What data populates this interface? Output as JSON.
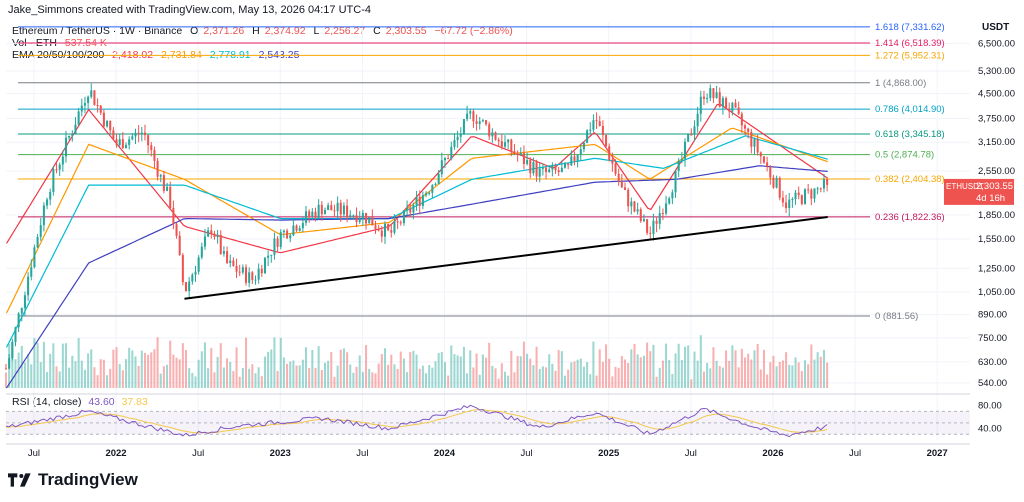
{
  "attribution": "Jake_Simmons created with TradingView.com, May 13, 2026 04:17 UTC-4",
  "legend": {
    "symbol": "Ethereum / TetherUS · 1W · Binance",
    "o_label": "O",
    "o_value": "2,371.26",
    "h_label": "H",
    "h_value": "2,374.92",
    "l_label": "L",
    "l_value": "2,256.27",
    "c_label": "C",
    "c_value": "2,303.55",
    "change": "−67.72 (−2.86%)",
    "vol_label": "Vol · ETH",
    "vol_value": "537.54 K",
    "ema_label": "EMA 20/50/100/200",
    "ema_values": [
      "2,418.02",
      "2,731.84",
      "2,778.91",
      "2,543.25"
    ]
  },
  "rsi_legend": {
    "label": "RSI (14, close)",
    "value": "43.60",
    "ma_value": "37.83"
  },
  "axis_title": "USDT",
  "price_badge": {
    "symbol": "ETHUSDT",
    "price": "2,303.55",
    "countdown": "4d 16h"
  },
  "brand": "TradingView",
  "colors": {
    "up": "#26a69a",
    "down": "#ef5350",
    "ema20": "#f23645",
    "ema50": "#ff9800",
    "ema100": "#00bcd4",
    "ema200": "#3f3fc0",
    "rsi": "#7e57c2",
    "rsi_ma": "#f5c84c",
    "trendline": "#000000"
  },
  "chart_data": {
    "type": "candlestick",
    "y_scale": "log",
    "ylim": [
      520,
      7600
    ],
    "x_ticks": [
      "Jul",
      "2022",
      "Jul",
      "2023",
      "Jul",
      "2024",
      "Jul",
      "2025",
      "Jul",
      "2026",
      "Jul",
      "2027"
    ],
    "y_ticks": [
      "6,500.00",
      "5,300.00",
      "4,500.00",
      "3,750.00",
      "3,150.00",
      "2,550.00",
      "1,850.00",
      "1,550.00",
      "1,250.00",
      "1,050.00",
      "890.00",
      "750.00",
      "630.00",
      "540.00"
    ],
    "fib_levels": [
      {
        "label": "1.618 (7,331.62)",
        "value": 7331.62,
        "color": "#2962ff"
      },
      {
        "label": "1.414 (6,518.39)",
        "value": 6518.39,
        "color": "#e91e63"
      },
      {
        "label": "1.272 (5,952.31)",
        "value": 5952.31,
        "color": "#f7a600"
      },
      {
        "label": "1 (4,868.00)",
        "value": 4868.0,
        "color": "#787b86"
      },
      {
        "label": "0.786 (4,014.90)",
        "value": 4014.9,
        "color": "#00a0c8"
      },
      {
        "label": "0.618 (3,345.18)",
        "value": 3345.18,
        "color": "#089981"
      },
      {
        "label": "0.5 (2,874.78)",
        "value": 2874.78,
        "color": "#4caf50"
      },
      {
        "label": "0.382 (2,404.38)",
        "value": 2404.38,
        "color": "#f7a600"
      },
      {
        "label": "0.236 (1,822.36)",
        "value": 1822.36,
        "color": "#c2185b"
      },
      {
        "label": "0 (881.56)",
        "value": 881.56,
        "color": "#787b86"
      }
    ],
    "trendline": {
      "from": {
        "date": "2022-06",
        "price": 1000
      },
      "to": {
        "date": "2026-05",
        "price": 1820
      }
    },
    "close_path": [
      [
        "2021-05",
        600
      ],
      [
        "2021-08",
        2200
      ],
      [
        "2021-11",
        4700
      ],
      [
        "2022-01",
        3100
      ],
      [
        "2022-03",
        3400
      ],
      [
        "2022-05",
        2000
      ],
      [
        "2022-06",
        1050
      ],
      [
        "2022-08",
        1700
      ],
      [
        "2022-09",
        1300
      ],
      [
        "2022-11",
        1150
      ],
      [
        "2023-01",
        1600
      ],
      [
        "2023-04",
        1950
      ],
      [
        "2023-07",
        1850
      ],
      [
        "2023-09",
        1600
      ],
      [
        "2023-12",
        2300
      ],
      [
        "2024-03",
        3900
      ],
      [
        "2024-05",
        3200
      ],
      [
        "2024-08",
        2500
      ],
      [
        "2024-10",
        2550
      ],
      [
        "2024-12",
        3800
      ],
      [
        "2025-02",
        2200
      ],
      [
        "2025-04",
        1600
      ],
      [
        "2025-06",
        2500
      ],
      [
        "2025-08",
        4600
      ],
      [
        "2025-10",
        4000
      ],
      [
        "2025-12",
        2900
      ],
      [
        "2026-02",
        2000
      ],
      [
        "2026-05",
        2303.55
      ]
    ],
    "rsi_ticks": [
      "80.00",
      "40.00"
    ],
    "rsi_path": [
      [
        "2021-05",
        42
      ],
      [
        "2021-11",
        70
      ],
      [
        "2022-06",
        28
      ],
      [
        "2022-10",
        45
      ],
      [
        "2023-04",
        58
      ],
      [
        "2023-09",
        40
      ],
      [
        "2024-03",
        80
      ],
      [
        "2024-08",
        42
      ],
      [
        "2024-12",
        68
      ],
      [
        "2025-04",
        30
      ],
      [
        "2025-08",
        74
      ],
      [
        "2025-12",
        40
      ],
      [
        "2026-02",
        28
      ],
      [
        "2026-05",
        43.6
      ]
    ],
    "ema_paths": {
      "ema20": [
        [
          "2021-05",
          1500
        ],
        [
          "2021-11",
          4000
        ],
        [
          "2022-06",
          1700
        ],
        [
          "2023-01",
          1400
        ],
        [
          "2023-09",
          1700
        ],
        [
          "2024-03",
          3300
        ],
        [
          "2024-09",
          2600
        ],
        [
          "2024-12",
          3400
        ],
        [
          "2025-04",
          1900
        ],
        [
          "2025-09",
          4200
        ],
        [
          "2026-05",
          2420
        ]
      ],
      "ema50": [
        [
          "2021-05",
          900
        ],
        [
          "2021-11",
          3100
        ],
        [
          "2022-06",
          2400
        ],
        [
          "2023-01",
          1600
        ],
        [
          "2023-09",
          1750
        ],
        [
          "2024-03",
          2800
        ],
        [
          "2024-12",
          3100
        ],
        [
          "2025-04",
          2400
        ],
        [
          "2025-10",
          3500
        ],
        [
          "2026-05",
          2730
        ]
      ],
      "ema100": [
        [
          "2021-05",
          700
        ],
        [
          "2021-11",
          2300
        ],
        [
          "2022-06",
          2300
        ],
        [
          "2023-01",
          1800
        ],
        [
          "2023-09",
          1800
        ],
        [
          "2024-03",
          2400
        ],
        [
          "2024-12",
          2800
        ],
        [
          "2025-05",
          2600
        ],
        [
          "2025-11",
          3300
        ],
        [
          "2026-05",
          2780
        ]
      ],
      "ema200": [
        [
          "2021-05",
          520
        ],
        [
          "2021-11",
          1300
        ],
        [
          "2022-06",
          1800
        ],
        [
          "2023-01",
          1780
        ],
        [
          "2023-09",
          1800
        ],
        [
          "2024-03",
          2000
        ],
        [
          "2024-12",
          2350
        ],
        [
          "2025-06",
          2400
        ],
        [
          "2025-12",
          2650
        ],
        [
          "2026-05",
          2543
        ]
      ]
    }
  }
}
